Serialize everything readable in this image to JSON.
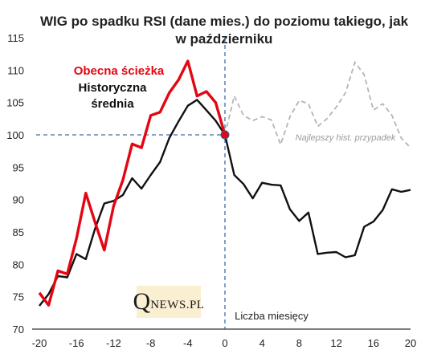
{
  "chart_data": {
    "type": "line",
    "title": "WIG po spadku RSI (dane mies.) do poziomu takiego, jak",
    "title_line2": "w październiku",
    "xlabel": "Liczba miesięcy",
    "ylabel": "",
    "xlim": [
      -20,
      20
    ],
    "ylim": [
      70,
      115
    ],
    "x_ticks": [
      -20,
      -16,
      -12,
      -8,
      -4,
      0,
      4,
      8,
      12,
      16,
      20
    ],
    "y_ticks": [
      70,
      75,
      80,
      85,
      90,
      95,
      100,
      105,
      110,
      115
    ],
    "grid": false,
    "reference": {
      "x": 0,
      "y": 100
    },
    "series": [
      {
        "name": "Obecna ścieżka",
        "color": "#e30613",
        "x": [
          -20,
          -19,
          -18,
          -17,
          -16,
          -15,
          -14,
          -13,
          -12,
          -11,
          -10,
          -9,
          -8,
          -7,
          -6,
          -5,
          -4,
          -3,
          -2,
          -1,
          0
        ],
        "values": [
          75.6,
          73.7,
          79.0,
          78.5,
          84.0,
          91.0,
          86.5,
          82.2,
          89.0,
          93.0,
          98.6,
          98.0,
          103.0,
          103.5,
          106.5,
          108.5,
          111.4,
          106.0,
          106.7,
          105.0,
          100.0
        ]
      },
      {
        "name": "Historyczna średnia",
        "color": "#111111",
        "x": [
          -20,
          -19,
          -18,
          -17,
          -16,
          -15,
          -14,
          -13,
          -12,
          -11,
          -10,
          -9,
          -8,
          -7,
          -6,
          -5,
          -4,
          -3,
          -2,
          -1,
          0,
          1,
          2,
          3,
          4,
          5,
          6,
          7,
          8,
          9,
          10,
          11,
          12,
          13,
          14,
          15,
          16,
          17,
          18,
          19,
          20
        ],
        "values": [
          73.6,
          75.4,
          78.2,
          78.0,
          81.6,
          80.8,
          85.5,
          89.4,
          89.8,
          90.7,
          93.3,
          91.7,
          93.8,
          95.8,
          99.5,
          102.1,
          104.5,
          105.4,
          103.8,
          102.2,
          100.0,
          93.8,
          92.4,
          90.2,
          92.6,
          92.3,
          92.2,
          88.5,
          86.7,
          88.0,
          81.6,
          81.8,
          81.9,
          81.1,
          81.4,
          85.8,
          86.6,
          88.4,
          91.6,
          91.2,
          91.5
        ]
      },
      {
        "name": "Najlepszy hist. przypadek",
        "color": "#b4b4b4",
        "x": [
          0,
          1,
          2,
          3,
          4,
          5,
          6,
          7,
          8,
          9,
          10,
          11,
          12,
          13,
          14,
          15,
          16,
          17,
          18,
          19,
          20
        ],
        "values": [
          100.0,
          106.0,
          103.0,
          102.2,
          102.8,
          102.3,
          98.5,
          102.8,
          105.3,
          104.8,
          101.3,
          102.5,
          104.3,
          106.5,
          111.2,
          109.3,
          103.8,
          104.8,
          103.0,
          99.5,
          98.0
        ]
      }
    ]
  },
  "labels": {
    "current": "Obecna ścieżka",
    "historical_line1": "Historyczna",
    "historical_line2": "średnia",
    "best": "Najlepszy hist. przypadek",
    "x_axis": "Liczba miesięcy"
  },
  "logo": {
    "q": "Q",
    "rest": "NEWS.PL"
  }
}
